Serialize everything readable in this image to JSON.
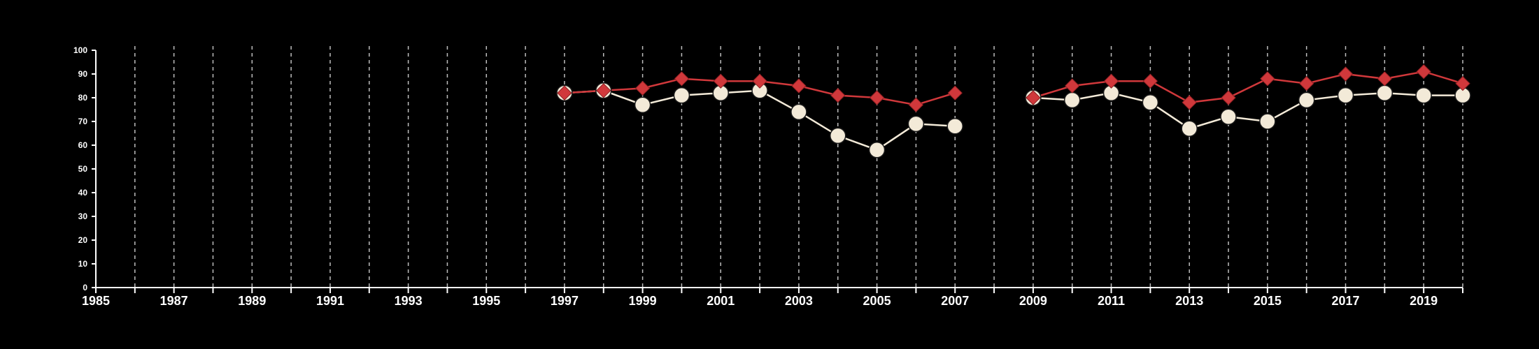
{
  "chart_data": {
    "type": "line",
    "title": "",
    "xlabel": "",
    "ylabel": "",
    "xlim": [
      1985,
      2020
    ],
    "ylim": [
      0,
      100
    ],
    "x_ticks": [
      1985,
      1987,
      1989,
      1991,
      1993,
      1995,
      1997,
      1999,
      2001,
      2003,
      2005,
      2007,
      2009,
      2011,
      2013,
      2015,
      2017,
      2019
    ],
    "y_ticks": [
      0,
      10,
      20,
      30,
      40,
      50,
      60,
      70,
      80,
      90,
      100
    ],
    "grid": "vertical dashed lines at every year",
    "legend": "none",
    "series": [
      {
        "marker": "diamond",
        "color": "#d0383b",
        "points": [
          [
            1997,
            82
          ],
          [
            1998,
            83
          ],
          [
            1999,
            84
          ],
          [
            2000,
            88
          ],
          [
            2001,
            87
          ],
          [
            2002,
            87
          ],
          [
            2003,
            85
          ],
          [
            2004,
            81
          ],
          [
            2005,
            80
          ],
          [
            2006,
            77
          ],
          [
            2007,
            82
          ],
          [
            2009,
            80
          ],
          [
            2010,
            85
          ],
          [
            2011,
            87
          ],
          [
            2012,
            87
          ],
          [
            2013,
            78
          ],
          [
            2014,
            80
          ],
          [
            2015,
            88
          ],
          [
            2016,
            86
          ],
          [
            2017,
            90
          ],
          [
            2018,
            88
          ],
          [
            2019,
            91
          ],
          [
            2020,
            86
          ]
        ]
      },
      {
        "marker": "circle",
        "color": "#f3ead8",
        "points": [
          [
            1997,
            82
          ],
          [
            1998,
            83
          ],
          [
            1999,
            77
          ],
          [
            2000,
            81
          ],
          [
            2001,
            82
          ],
          [
            2002,
            83
          ],
          [
            2003,
            74
          ],
          [
            2004,
            64
          ],
          [
            2005,
            58
          ],
          [
            2006,
            69
          ],
          [
            2007,
            68
          ],
          [
            2009,
            80
          ],
          [
            2010,
            79
          ],
          [
            2011,
            82
          ],
          [
            2012,
            78
          ],
          [
            2013,
            67
          ],
          [
            2014,
            72
          ],
          [
            2015,
            70
          ],
          [
            2016,
            79
          ],
          [
            2017,
            81
          ],
          [
            2018,
            82
          ],
          [
            2019,
            81
          ],
          [
            2020,
            81
          ]
        ]
      }
    ]
  }
}
